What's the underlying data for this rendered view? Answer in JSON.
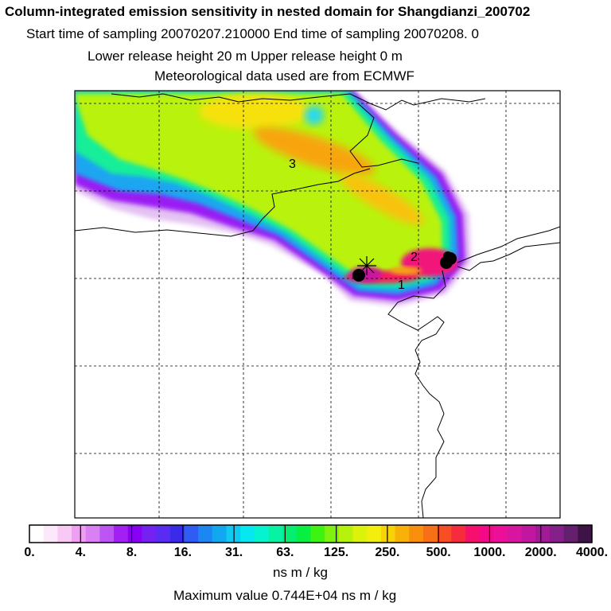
{
  "header": {
    "title": "Column-integrated emission sensitivity in nested domain for Shangdianzi_200702",
    "sampling": "Start time of sampling 20070207.210000     End time of sampling 20070208.     0",
    "release": "Lower release height   20 m          Upper release height    0 m",
    "meteo": "Meteorological data used are from ECMWF"
  },
  "map": {
    "release_labels": [
      "1",
      "2",
      "3"
    ]
  },
  "colorbar": {
    "colors": [
      "#ffffff",
      "#fde8fb",
      "#f7c9f4",
      "#ee9ff0",
      "#d980f2",
      "#bd55f5",
      "#a320f5",
      "#8a00f5",
      "#7422f2",
      "#5a2bf0",
      "#3a2aea",
      "#2f5cf2",
      "#1c86f3",
      "#12a8f0",
      "#0fcaf1",
      "#06e7ef",
      "#06f3cf",
      "#08f2a4",
      "#06ee72",
      "#07f042",
      "#3ef30f",
      "#7ef20e",
      "#b6f20c",
      "#dcf20b",
      "#f3ee0d",
      "#f7d206",
      "#f8b108",
      "#f8900d",
      "#f87015",
      "#f84e25",
      "#f72b3e",
      "#f70f6e",
      "#f30a88",
      "#ec0f9a",
      "#d815a0",
      "#c1169f",
      "#a01b95",
      "#852088",
      "#651f6f",
      "#3e1345"
    ],
    "labels": [
      "0.",
      "4.",
      "8.",
      "16.",
      "31.",
      "63.",
      "125.",
      "250.",
      "500.",
      "1000.",
      "2000.",
      "4000."
    ],
    "units": "ns m / kg"
  },
  "footer": {
    "max_value": "Maximum value  0.744E+04 ns m / kg"
  }
}
